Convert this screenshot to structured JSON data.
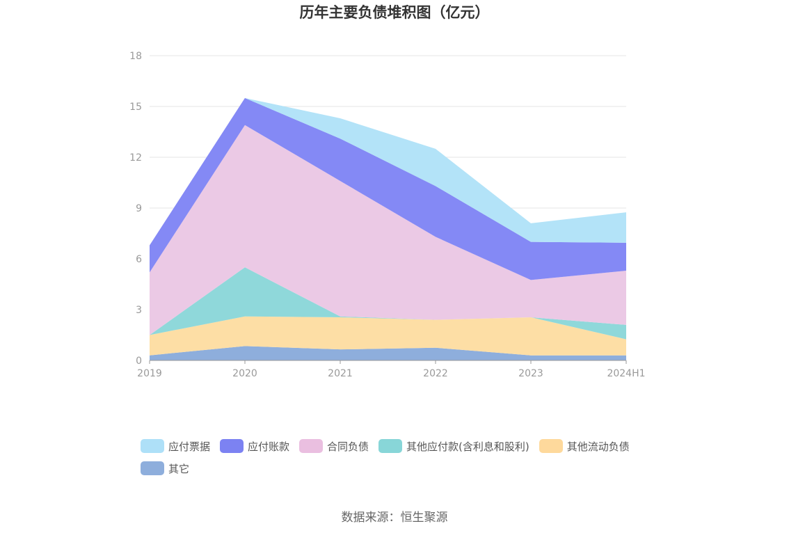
{
  "chart_data": {
    "type": "area",
    "stacked": true,
    "title": "历年主要负债堆积图（亿元）",
    "source": "数据来源：恒生聚源",
    "categories": [
      "2019",
      "2020",
      "2021",
      "2022",
      "2023",
      "2024H1"
    ],
    "ylim": [
      0,
      18
    ],
    "yticks": [
      0,
      3,
      6,
      9,
      12,
      15,
      18
    ],
    "grid": true,
    "legend_position": "bottom",
    "series": [
      {
        "name": "其它",
        "color": "#8eaedc",
        "values": [
          0.3,
          0.85,
          0.65,
          0.75,
          0.3,
          0.3
        ]
      },
      {
        "name": "其他流动负债",
        "color": "#fddea5",
        "values": [
          1.2,
          1.75,
          1.9,
          1.65,
          2.25,
          0.95
        ]
      },
      {
        "name": "其他应付款(含利息和股利)",
        "color": "#8fd8da",
        "values": [
          0.0,
          2.9,
          0.05,
          0.0,
          0.0,
          0.85
        ]
      },
      {
        "name": "合同负债",
        "color": "#ebc9e5",
        "values": [
          3.7,
          8.4,
          8.0,
          4.9,
          2.2,
          3.2
        ]
      },
      {
        "name": "应付账款",
        "color": "#8489f5",
        "values": [
          1.6,
          1.6,
          2.5,
          3.0,
          2.25,
          1.65
        ]
      },
      {
        "name": "应付票据",
        "color": "#b3e3f8",
        "values": [
          0.0,
          0.0,
          1.2,
          2.2,
          1.1,
          1.8
        ]
      }
    ]
  },
  "legend": [
    {
      "label": "应付票据",
      "color": "#aee0f8"
    },
    {
      "label": "应付账款",
      "color": "#7c82f2"
    },
    {
      "label": "合同负债",
      "color": "#eabfe0"
    },
    {
      "label": "其他应付款(含利息和股利)",
      "color": "#88d6d8"
    },
    {
      "label": "其他流动负债",
      "color": "#fed99c"
    },
    {
      "label": "其它",
      "color": "#8eaedc"
    }
  ]
}
